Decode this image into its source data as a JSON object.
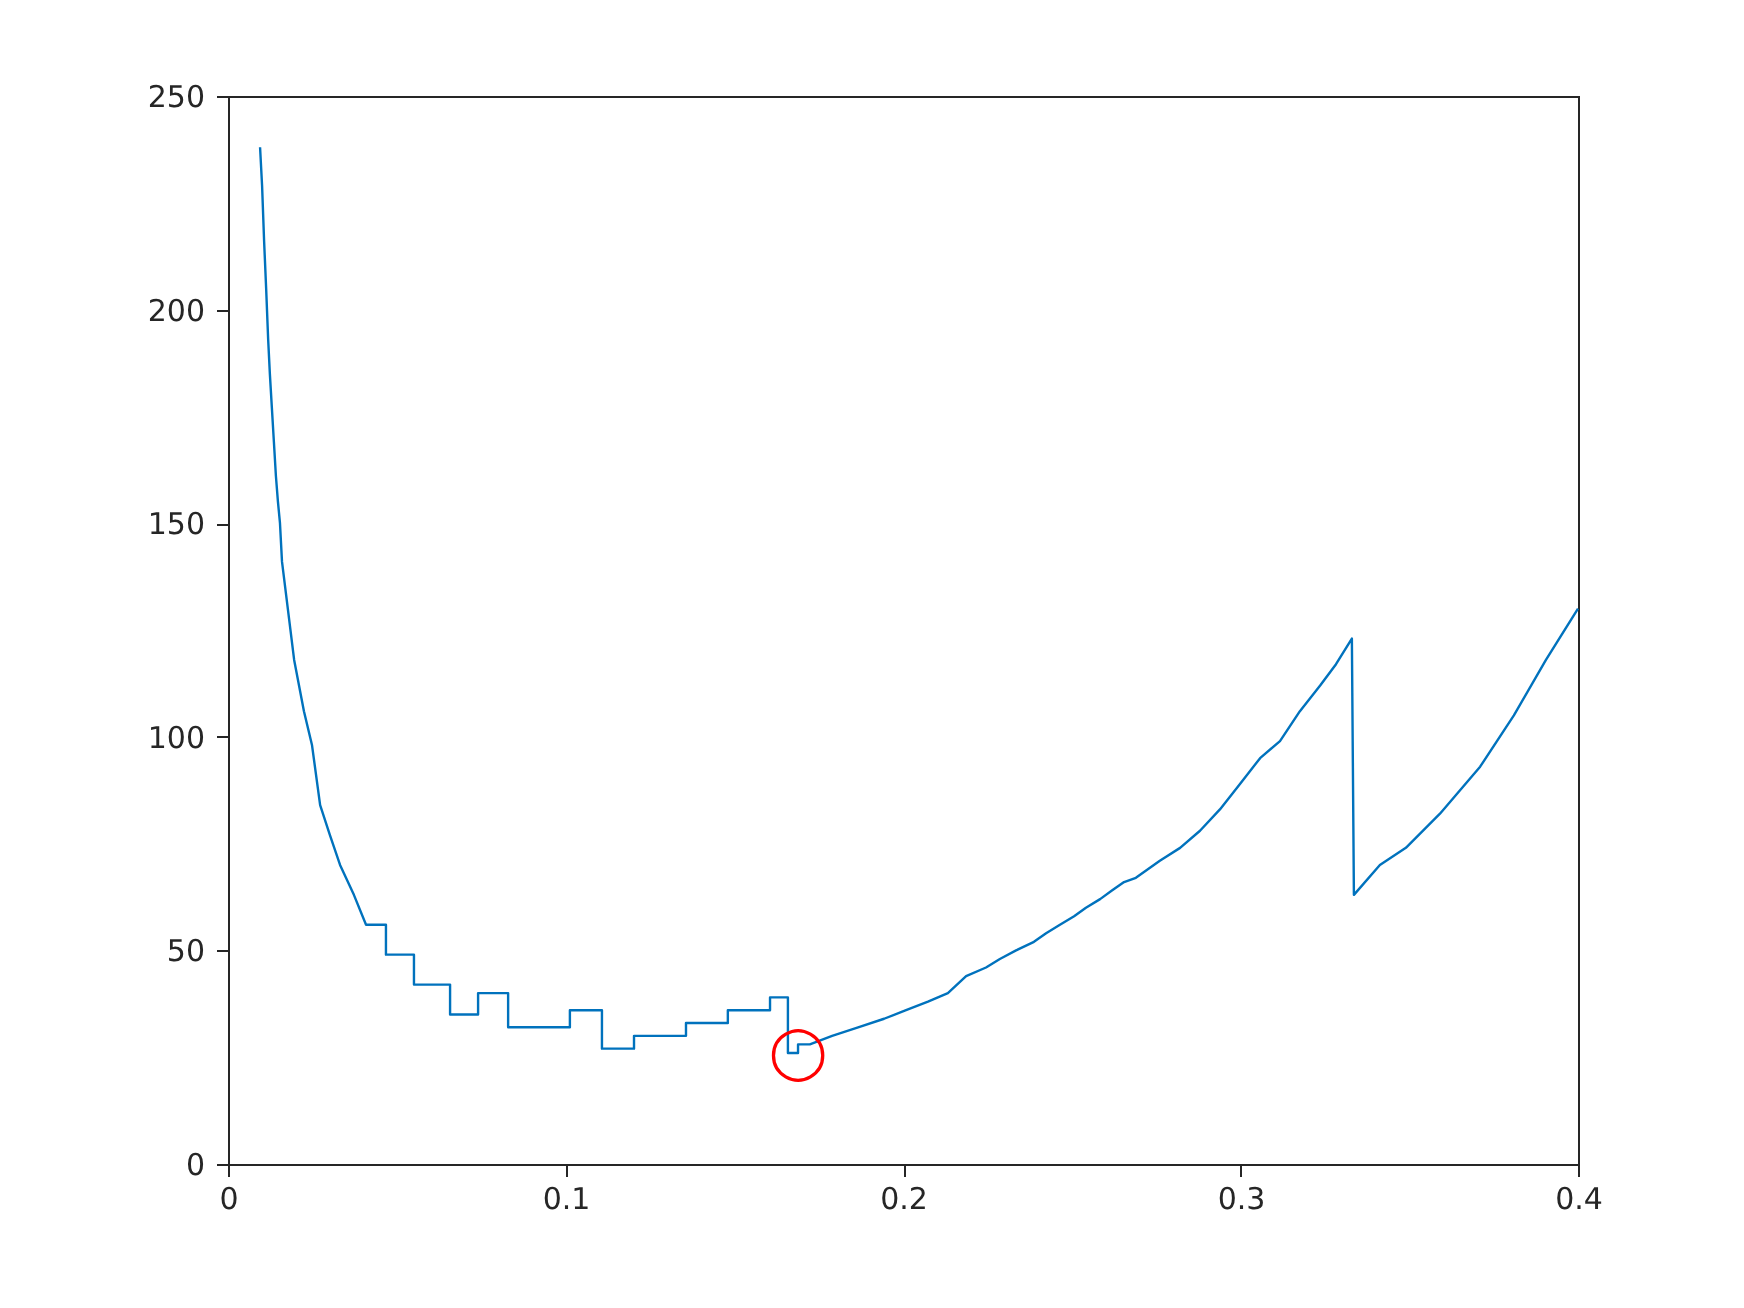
{
  "chart_data": {
    "type": "line",
    "x": [
      0.0095,
      0.0101,
      0.0107,
      0.0113,
      0.0119,
      0.0124,
      0.013,
      0.0136,
      0.0142,
      0.0148,
      0.0154,
      0.016,
      0.0196,
      0.0225,
      0.0249,
      0.0273,
      0.0302,
      0.0332,
      0.0373,
      0.0409,
      0.0468,
      0.0468,
      0.0551,
      0.0551,
      0.0658,
      0.0658,
      0.0741,
      0.0741,
      0.083,
      0.083,
      0.1013,
      0.1013,
      0.1108,
      0.1108,
      0.1203,
      0.1203,
      0.1357,
      0.1357,
      0.1481,
      0.1481,
      0.1606,
      0.1606,
      0.1659,
      0.1659,
      0.1689,
      0.1689,
      0.1724,
      0.179,
      0.1867,
      0.1944,
      0.2009,
      0.2074,
      0.2133,
      0.2187,
      0.2246,
      0.2287,
      0.2335,
      0.2388,
      0.2424,
      0.2465,
      0.2507,
      0.2542,
      0.2584,
      0.2619,
      0.2655,
      0.269,
      0.2761,
      0.2821,
      0.288,
      0.2939,
      0.2999,
      0.3058,
      0.3117,
      0.3176,
      0.3236,
      0.3283,
      0.333,
      0.3336,
      0.3413,
      0.349,
      0.3591,
      0.371,
      0.381,
      0.3905,
      0.4
    ],
    "series": [
      {
        "color": "#0072bd",
        "values": [
          238,
          229,
          216,
          205,
          193,
          185,
          177,
          169,
          161,
          155,
          150,
          141,
          118,
          106,
          98,
          84,
          77,
          70,
          63,
          56,
          56,
          49,
          49,
          42,
          42,
          35,
          35,
          40,
          40,
          32,
          32,
          36,
          36,
          27,
          27,
          30,
          30,
          33,
          33,
          36,
          36,
          39,
          39,
          26,
          26,
          28,
          28,
          30,
          32,
          34,
          36,
          38,
          40,
          44,
          46,
          48,
          50,
          52,
          54,
          56,
          58,
          60,
          62,
          64,
          66,
          67,
          71,
          74,
          78,
          83,
          89,
          95,
          99,
          106,
          112,
          117,
          123,
          63,
          70,
          74,
          82,
          93,
          105,
          118,
          130
        ]
      }
    ],
    "xlim": [
      0,
      0.4
    ],
    "xticks": [
      0,
      0.1,
      0.2,
      0.3,
      0.4
    ],
    "ylim": [
      0,
      250
    ],
    "yticks": [
      0,
      50,
      100,
      150,
      200,
      250
    ],
    "grid": false,
    "legend": false,
    "marker": "none",
    "line_style": "solid",
    "annotations": [
      {
        "text": "◯",
        "x": 0.1689,
        "y": 26
      }
    ]
  }
}
